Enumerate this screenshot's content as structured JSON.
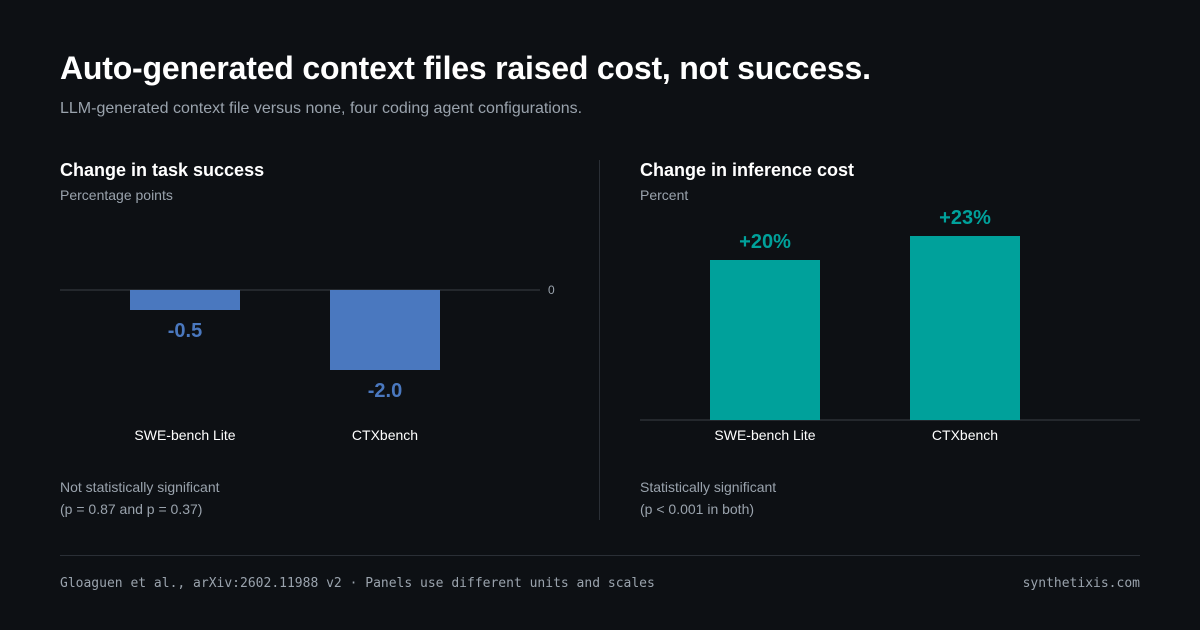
{
  "title": "Auto-generated context files raised cost, not success.",
  "subtitle": "LLM-generated context file versus none, four coding agent configurations.",
  "colors": {
    "background": "#0d1014",
    "success_bar": "#4a78bf",
    "cost_bar": "#00a19b",
    "axis": "#3a3f46",
    "muted_text": "#9aa3ad"
  },
  "chart_data": [
    {
      "type": "bar",
      "title": "Change in task success",
      "ylabel": "Percentage points",
      "categories": [
        "SWE-bench Lite",
        "CTXbench"
      ],
      "values": [
        -0.5,
        -2.0
      ],
      "data_labels": [
        "-0.5",
        "-2.0"
      ],
      "zero_tick_label": "0",
      "ylim": [
        -2.0,
        0
      ],
      "note": [
        "Not statistically significant",
        "(p = 0.87 and p = 0.37)"
      ]
    },
    {
      "type": "bar",
      "title": "Change in inference cost",
      "ylabel": "Percent",
      "categories": [
        "SWE-bench Lite",
        "CTXbench"
      ],
      "values": [
        20,
        23
      ],
      "data_labels": [
        "+20%",
        "+23%"
      ],
      "ylim": [
        0,
        23
      ],
      "note": [
        "Statistically significant",
        "(p < 0.001 in both)"
      ]
    }
  ],
  "footer": {
    "source": "Gloaguen et al., arXiv:2602.11988 v2 · Panels use different units and scales",
    "site": "synthetixis.com"
  }
}
